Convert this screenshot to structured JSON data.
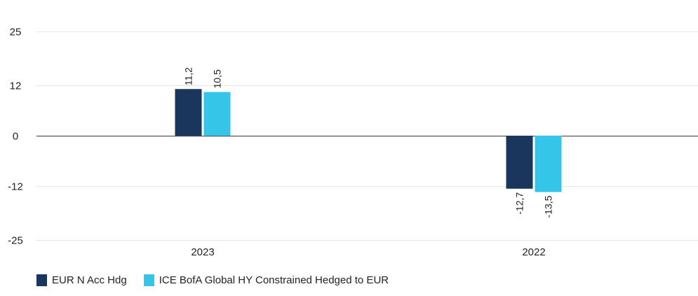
{
  "chart_data": {
    "type": "bar",
    "categories": [
      "2023",
      "2022"
    ],
    "series": [
      {
        "name": "EUR N Acc Hdg",
        "values": [
          11.2,
          -12.7
        ],
        "labels": [
          "11,2",
          "-12,7"
        ],
        "color": "#1b365d"
      },
      {
        "name": "ICE BofA Global HY Constrained Hedged to EUR",
        "values": [
          10.5,
          -13.5
        ],
        "labels": [
          "10,5",
          "-13,5"
        ],
        "color": "#35c5e9"
      }
    ],
    "yticks": [
      25,
      12,
      0,
      -12,
      -25
    ],
    "ylim": [
      -25,
      25
    ],
    "title": "",
    "xlabel": "",
    "ylabel": "",
    "grid": true,
    "legend_position": "bottom-left"
  }
}
